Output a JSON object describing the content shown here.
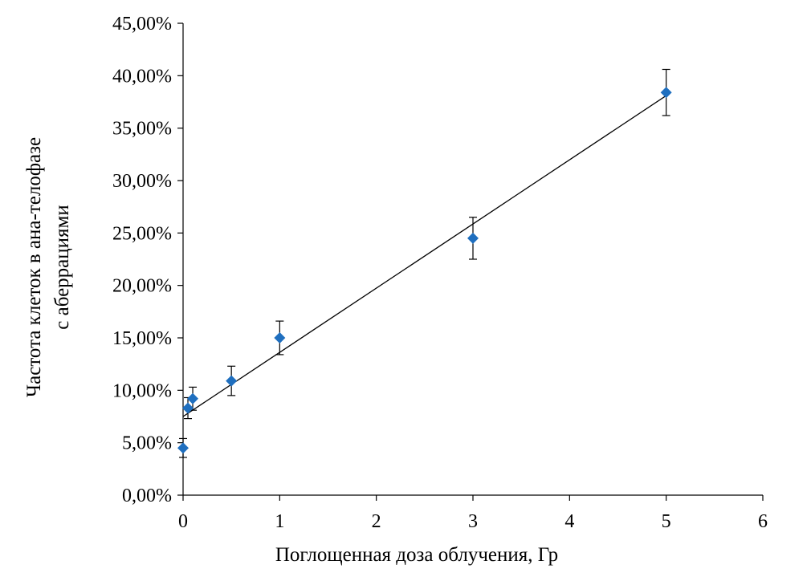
{
  "chart_data": {
    "type": "scatter",
    "title": "",
    "xlabel": "Поглощенная доза облучения, Гр",
    "ylabel_lines": [
      "Частота клеток в ана-телофазе",
      "с аберрациями"
    ],
    "xlim": [
      0,
      6
    ],
    "ylim": [
      0,
      0.45
    ],
    "x_ticks": [
      0,
      1,
      2,
      3,
      4,
      5,
      6
    ],
    "x_tick_labels": [
      "0",
      "1",
      "2",
      "3",
      "4",
      "5",
      "6"
    ],
    "y_ticks": [
      0,
      0.05,
      0.1,
      0.15,
      0.2,
      0.25,
      0.3,
      0.35,
      0.4,
      0.45
    ],
    "y_tick_labels": [
      "0,00%",
      "5,00%",
      "10,00%",
      "15,00%",
      "20,00%",
      "25,00%",
      "30,00%",
      "35,00%",
      "40,00%",
      "45,00%"
    ],
    "grid": false,
    "marker": "diamond",
    "marker_color": "#1F6FBF",
    "points": [
      {
        "x": 0,
        "y": 0.045,
        "err": 0.009
      },
      {
        "x": 0.05,
        "y": 0.083,
        "err": 0.01
      },
      {
        "x": 0.1,
        "y": 0.092,
        "err": 0.011
      },
      {
        "x": 0.5,
        "y": 0.109,
        "err": 0.014
      },
      {
        "x": 1,
        "y": 0.15,
        "err": 0.016
      },
      {
        "x": 3,
        "y": 0.245,
        "err": 0.02
      },
      {
        "x": 5,
        "y": 0.384,
        "err": 0.022
      }
    ],
    "trendline": {
      "type": "linear",
      "x": [
        0,
        5
      ],
      "y": [
        0.075,
        0.381
      ]
    }
  }
}
